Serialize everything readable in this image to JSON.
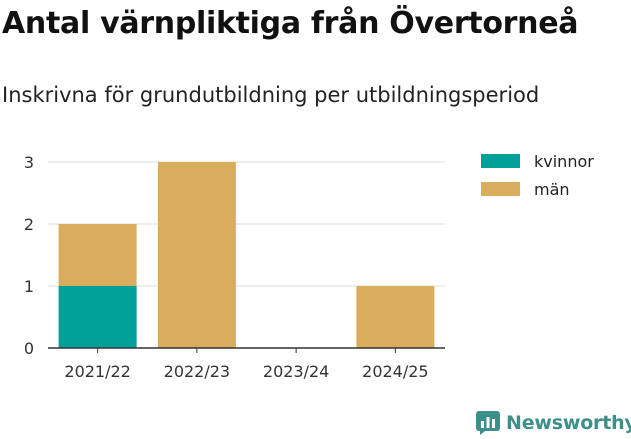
{
  "title": "Antal värnpliktiga från Övertorneå",
  "subtitle": "Inskrivna för grundutbildning per utbildningsperiod",
  "brand": {
    "name": "Newsworthy",
    "icon": "bar-chart-logo-icon"
  },
  "colors": {
    "kvinnor": "#00a098",
    "man": "#d9ad5b",
    "grid": "#dddddd",
    "axis": "#333333"
  },
  "chart_data": {
    "type": "bar",
    "stacked": true,
    "categories": [
      "2021/22",
      "2022/23",
      "2023/24",
      "2024/25"
    ],
    "series": [
      {
        "name": "kvinnor",
        "values": [
          1,
          0,
          0,
          0
        ]
      },
      {
        "name": "män",
        "values": [
          1,
          3,
          0,
          1
        ]
      }
    ],
    "yticks": [
      "0",
      "1",
      "2",
      "3"
    ],
    "ylim": [
      0,
      3
    ],
    "grid": true,
    "legend": "top-right"
  }
}
